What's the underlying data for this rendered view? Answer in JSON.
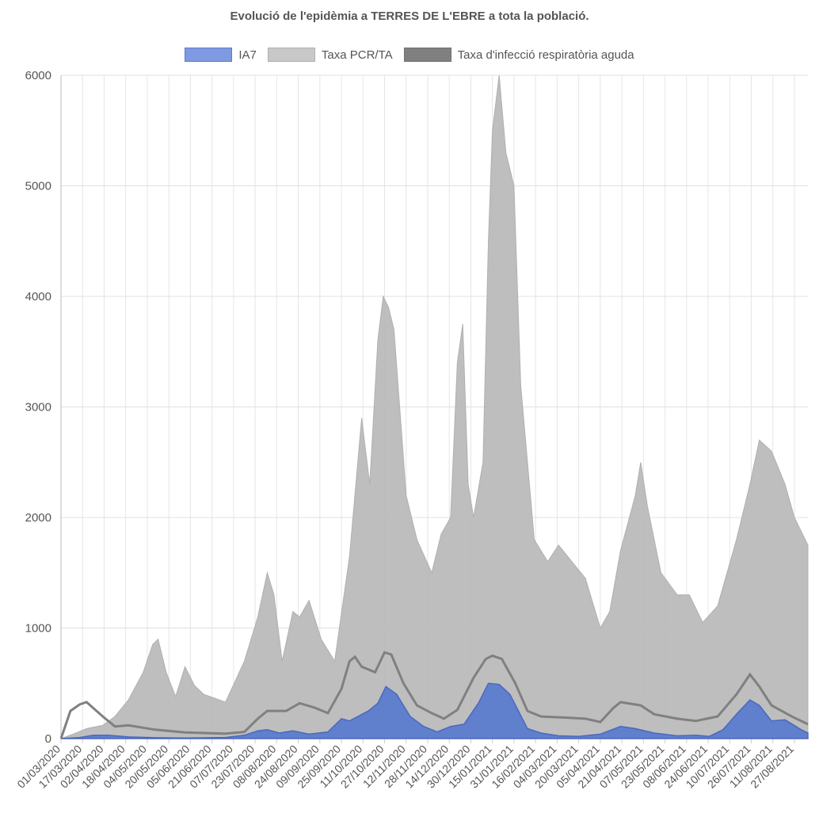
{
  "chart_data": {
    "type": "area",
    "title": "Evolució de l'epidèmia a TERRES DE L'EBRE a tota la població.",
    "xlabel": "",
    "ylabel": "",
    "ylim": [
      0,
      6000
    ],
    "yticks": [
      0,
      1000,
      2000,
      3000,
      4000,
      5000,
      6000
    ],
    "grid": true,
    "legend": "top",
    "x_range": [
      "01/03/2020",
      "06/09/2021"
    ],
    "x_tick_labels": [
      "01/03/2020",
      "17/03/2020",
      "02/04/2020",
      "18/04/2020",
      "04/05/2020",
      "20/05/2020",
      "05/06/2020",
      "21/06/2020",
      "07/07/2020",
      "23/07/2020",
      "08/08/2020",
      "24/08/2020",
      "09/09/2020",
      "25/09/2020",
      "11/10/2020",
      "27/10/2020",
      "12/11/2020",
      "28/11/2020",
      "14/12/2020",
      "30/12/2020",
      "15/01/2021",
      "31/01/2021",
      "16/02/2021",
      "04/03/2021",
      "20/03/2021",
      "05/04/2021",
      "21/04/2021",
      "07/05/2021",
      "23/05/2021",
      "08/06/2021",
      "24/06/2021",
      "10/07/2021",
      "26/07/2021",
      "11/08/2021",
      "27/08/2021"
    ],
    "series": [
      {
        "name": "IA7",
        "color": "#5b7bcc",
        "points": [
          [
            "01/03/2020",
            0
          ],
          [
            "15/03/2020",
            10
          ],
          [
            "25/03/2020",
            30
          ],
          [
            "05/04/2020",
            30
          ],
          [
            "20/04/2020",
            15
          ],
          [
            "10/05/2020",
            8
          ],
          [
            "01/06/2020",
            5
          ],
          [
            "01/07/2020",
            10
          ],
          [
            "15/07/2020",
            30
          ],
          [
            "25/07/2020",
            70
          ],
          [
            "01/08/2020",
            80
          ],
          [
            "10/08/2020",
            50
          ],
          [
            "20/08/2020",
            70
          ],
          [
            "01/09/2020",
            40
          ],
          [
            "15/09/2020",
            60
          ],
          [
            "25/09/2020",
            180
          ],
          [
            "01/10/2020",
            160
          ],
          [
            "15/10/2020",
            250
          ],
          [
            "22/10/2020",
            320
          ],
          [
            "28/10/2020",
            470
          ],
          [
            "05/11/2020",
            400
          ],
          [
            "15/11/2020",
            200
          ],
          [
            "25/11/2020",
            110
          ],
          [
            "05/12/2020",
            60
          ],
          [
            "15/12/2020",
            110
          ],
          [
            "25/12/2020",
            130
          ],
          [
            "05/01/2021",
            330
          ],
          [
            "12/01/2021",
            500
          ],
          [
            "20/01/2021",
            490
          ],
          [
            "28/01/2021",
            400
          ],
          [
            "10/02/2021",
            90
          ],
          [
            "20/02/2021",
            50
          ],
          [
            "05/03/2021",
            25
          ],
          [
            "20/03/2021",
            20
          ],
          [
            "05/04/2021",
            40
          ],
          [
            "20/04/2021",
            110
          ],
          [
            "01/05/2021",
            90
          ],
          [
            "15/05/2021",
            50
          ],
          [
            "01/06/2021",
            25
          ],
          [
            "15/06/2021",
            30
          ],
          [
            "25/06/2021",
            20
          ],
          [
            "05/07/2021",
            80
          ],
          [
            "15/07/2021",
            220
          ],
          [
            "25/07/2021",
            350
          ],
          [
            "01/08/2021",
            300
          ],
          [
            "10/08/2021",
            160
          ],
          [
            "20/08/2021",
            170
          ],
          [
            "01/09/2021",
            80
          ],
          [
            "06/09/2021",
            50
          ]
        ]
      },
      {
        "name": "Taxa PCR/TA",
        "color": "#bdbdbd",
        "points": [
          [
            "01/03/2020",
            0
          ],
          [
            "10/03/2020",
            40
          ],
          [
            "20/03/2020",
            90
          ],
          [
            "01/04/2020",
            120
          ],
          [
            "10/04/2020",
            200
          ],
          [
            "20/04/2020",
            350
          ],
          [
            "01/05/2020",
            600
          ],
          [
            "08/05/2020",
            850
          ],
          [
            "12/05/2020",
            900
          ],
          [
            "18/05/2020",
            600
          ],
          [
            "25/05/2020",
            380
          ],
          [
            "01/06/2020",
            650
          ],
          [
            "08/06/2020",
            480
          ],
          [
            "15/06/2020",
            400
          ],
          [
            "01/07/2020",
            330
          ],
          [
            "15/07/2020",
            700
          ],
          [
            "25/07/2020",
            1100
          ],
          [
            "01/08/2020",
            1500
          ],
          [
            "06/08/2020",
            1300
          ],
          [
            "12/08/2020",
            700
          ],
          [
            "20/08/2020",
            1150
          ],
          [
            "25/08/2020",
            1100
          ],
          [
            "01/09/2020",
            1250
          ],
          [
            "10/09/2020",
            900
          ],
          [
            "20/09/2020",
            700
          ],
          [
            "01/10/2020",
            1650
          ],
          [
            "10/10/2020",
            2900
          ],
          [
            "16/10/2020",
            2300
          ],
          [
            "22/10/2020",
            3600
          ],
          [
            "26/10/2020",
            4000
          ],
          [
            "30/10/2020",
            3900
          ],
          [
            "03/11/2020",
            3700
          ],
          [
            "12/11/2020",
            2200
          ],
          [
            "20/11/2020",
            1800
          ],
          [
            "01/12/2020",
            1500
          ],
          [
            "08/12/2020",
            1850
          ],
          [
            "15/12/2020",
            2000
          ],
          [
            "20/12/2020",
            3400
          ],
          [
            "24/12/2020",
            3750
          ],
          [
            "28/12/2020",
            2300
          ],
          [
            "01/01/2021",
            2000
          ],
          [
            "08/01/2021",
            2500
          ],
          [
            "12/01/2021",
            4500
          ],
          [
            "15/01/2021",
            5500
          ],
          [
            "20/01/2021",
            6000
          ],
          [
            "25/01/2021",
            5300
          ],
          [
            "31/01/2021",
            5000
          ],
          [
            "05/02/2021",
            3200
          ],
          [
            "15/02/2021",
            1800
          ],
          [
            "25/02/2021",
            1600
          ],
          [
            "05/03/2021",
            1750
          ],
          [
            "15/03/2021",
            1600
          ],
          [
            "25/03/2021",
            1450
          ],
          [
            "05/04/2021",
            1000
          ],
          [
            "12/04/2021",
            1150
          ],
          [
            "20/04/2021",
            1700
          ],
          [
            "01/05/2021",
            2200
          ],
          [
            "05/05/2021",
            2500
          ],
          [
            "10/05/2021",
            2100
          ],
          [
            "20/05/2021",
            1500
          ],
          [
            "01/06/2021",
            1300
          ],
          [
            "10/06/2021",
            1300
          ],
          [
            "20/06/2021",
            1050
          ],
          [
            "01/07/2021",
            1200
          ],
          [
            "15/07/2021",
            1800
          ],
          [
            "25/07/2021",
            2300
          ],
          [
            "01/08/2021",
            2700
          ],
          [
            "10/08/2021",
            2600
          ],
          [
            "20/08/2021",
            2300
          ],
          [
            "27/08/2021",
            2000
          ],
          [
            "06/09/2021",
            1750
          ]
        ]
      },
      {
        "name": "Taxa d'infecció respiratòria aguda",
        "color": "#808080",
        "points": [
          [
            "01/03/2020",
            0
          ],
          [
            "08/03/2020",
            250
          ],
          [
            "15/03/2020",
            310
          ],
          [
            "20/03/2020",
            330
          ],
          [
            "01/04/2020",
            200
          ],
          [
            "10/04/2020",
            110
          ],
          [
            "20/04/2020",
            120
          ],
          [
            "10/05/2020",
            80
          ],
          [
            "01/06/2020",
            55
          ],
          [
            "01/07/2020",
            45
          ],
          [
            "15/07/2020",
            60
          ],
          [
            "25/07/2020",
            180
          ],
          [
            "01/08/2020",
            250
          ],
          [
            "15/08/2020",
            250
          ],
          [
            "25/08/2020",
            320
          ],
          [
            "05/09/2020",
            280
          ],
          [
            "15/09/2020",
            230
          ],
          [
            "25/09/2020",
            450
          ],
          [
            "01/10/2020",
            700
          ],
          [
            "05/10/2020",
            740
          ],
          [
            "10/10/2020",
            650
          ],
          [
            "20/10/2020",
            600
          ],
          [
            "27/10/2020",
            780
          ],
          [
            "01/11/2020",
            760
          ],
          [
            "10/11/2020",
            500
          ],
          [
            "20/11/2020",
            300
          ],
          [
            "01/12/2020",
            230
          ],
          [
            "10/12/2020",
            180
          ],
          [
            "20/12/2020",
            260
          ],
          [
            "01/01/2021",
            550
          ],
          [
            "10/01/2021",
            720
          ],
          [
            "15/01/2021",
            750
          ],
          [
            "22/01/2021",
            720
          ],
          [
            "01/02/2021",
            500
          ],
          [
            "10/02/2021",
            250
          ],
          [
            "20/02/2021",
            200
          ],
          [
            "10/03/2021",
            190
          ],
          [
            "25/03/2021",
            180
          ],
          [
            "05/04/2021",
            150
          ],
          [
            "15/04/2021",
            280
          ],
          [
            "20/04/2021",
            330
          ],
          [
            "05/05/2021",
            300
          ],
          [
            "15/05/2021",
            220
          ],
          [
            "01/06/2021",
            180
          ],
          [
            "15/06/2021",
            160
          ],
          [
            "01/07/2021",
            200
          ],
          [
            "15/07/2021",
            400
          ],
          [
            "25/07/2021",
            580
          ],
          [
            "01/08/2021",
            470
          ],
          [
            "10/08/2021",
            300
          ],
          [
            "25/08/2021",
            200
          ],
          [
            "06/09/2021",
            130
          ]
        ]
      }
    ]
  }
}
